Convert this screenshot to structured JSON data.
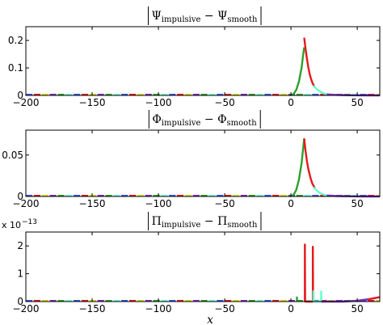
{
  "chart_data": [
    {
      "type": "line",
      "title": {
        "lhs": "Ψ",
        "lhs_sub": "impulsive",
        "rhs": "Ψ",
        "rhs_sub": "smooth"
      },
      "xlim": [
        -200,
        67
      ],
      "ylim": [
        0,
        0.25
      ],
      "x_ticks": [
        {
          "value": -200,
          "label": "−200"
        },
        {
          "value": -150,
          "label": "−150"
        },
        {
          "value": -100,
          "label": "−100"
        },
        {
          "value": -50,
          "label": "−50"
        },
        {
          "value": 0,
          "label": "0"
        },
        {
          "value": 50,
          "label": "50"
        }
      ],
      "y_ticks": [
        {
          "value": 0,
          "label": "0"
        },
        {
          "value": 0.1,
          "label": "0.1"
        },
        {
          "value": 0.2,
          "label": "0.2"
        }
      ],
      "exponent_label": "",
      "series": [
        {
          "color": "#2ca02c",
          "points": [
            [
              -1,
              0.0
            ],
            [
              2,
              0.005
            ],
            [
              4,
              0.02
            ],
            [
              6,
              0.05
            ],
            [
              8,
              0.1
            ],
            [
              9,
              0.14
            ],
            [
              10,
              0.175
            ]
          ]
        },
        {
          "color": "#e41a1c",
          "points": [
            [
              10,
              0.21
            ],
            [
              11,
              0.17
            ],
            [
              12,
              0.135
            ],
            [
              13,
              0.105
            ],
            [
              14,
              0.08
            ],
            [
              15,
              0.062
            ],
            [
              16,
              0.048
            ],
            [
              17,
              0.038
            ],
            [
              18,
              0.03
            ]
          ]
        },
        {
          "color": "#66ffcc",
          "points": [
            [
              17,
              0.035
            ],
            [
              19,
              0.025
            ],
            [
              21,
              0.017
            ],
            [
              23,
              0.011
            ],
            [
              25,
              0.007
            ],
            [
              27,
              0.004
            ]
          ]
        },
        {
          "color": "#7b2fbf",
          "points": [
            [
              27,
              0.004
            ],
            [
              33,
              0.002
            ],
            [
              40,
              0.001
            ],
            [
              50,
              0.0003
            ],
            [
              67,
              0.0
            ]
          ]
        }
      ]
    },
    {
      "type": "line",
      "title": {
        "lhs": "Φ",
        "lhs_sub": "impulsive",
        "rhs": "Φ",
        "rhs_sub": "smooth"
      },
      "xlim": [
        -200,
        67
      ],
      "ylim": [
        0,
        0.08
      ],
      "x_ticks": [
        {
          "value": -200,
          "label": "−200"
        },
        {
          "value": -150,
          "label": "−150"
        },
        {
          "value": -100,
          "label": "−100"
        },
        {
          "value": -50,
          "label": "−50"
        },
        {
          "value": 0,
          "label": "0"
        },
        {
          "value": 50,
          "label": "50"
        }
      ],
      "y_ticks": [
        {
          "value": 0,
          "label": "0"
        },
        {
          "value": 0.05,
          "label": "0.05"
        }
      ],
      "exponent_label": "",
      "series": [
        {
          "color": "#2ca02c",
          "points": [
            [
              -1,
              0.0
            ],
            [
              2,
              0.002
            ],
            [
              4,
              0.008
            ],
            [
              6,
              0.02
            ],
            [
              8,
              0.04
            ],
            [
              9,
              0.055
            ],
            [
              10,
              0.07
            ]
          ]
        },
        {
          "color": "#e41a1c",
          "points": [
            [
              10,
              0.07
            ],
            [
              11,
              0.055
            ],
            [
              12,
              0.043
            ],
            [
              13,
              0.034
            ],
            [
              14,
              0.027
            ],
            [
              15,
              0.021
            ],
            [
              16,
              0.016
            ],
            [
              17,
              0.013
            ],
            [
              18,
              0.01
            ]
          ]
        },
        {
          "color": "#66ffcc",
          "points": [
            [
              17,
              0.011
            ],
            [
              19,
              0.008
            ],
            [
              21,
              0.005
            ],
            [
              23,
              0.0035
            ],
            [
              25,
              0.002
            ],
            [
              27,
              0.0012
            ]
          ]
        },
        {
          "color": "#7b2fbf",
          "points": [
            [
              27,
              0.0012
            ],
            [
              33,
              0.0006
            ],
            [
              40,
              0.0003
            ],
            [
              50,
              0.0001
            ],
            [
              67,
              0.0
            ]
          ]
        }
      ]
    },
    {
      "type": "line",
      "title": {
        "lhs": "Π",
        "lhs_sub": "impulsive",
        "rhs": "Π",
        "rhs_sub": "smooth"
      },
      "xlim": [
        -200,
        67
      ],
      "ylim": [
        0,
        2.5
      ],
      "x_ticks": [
        {
          "value": -200,
          "label": "−200"
        },
        {
          "value": -150,
          "label": "−150"
        },
        {
          "value": -100,
          "label": "−100"
        },
        {
          "value": -50,
          "label": "−50"
        },
        {
          "value": 0,
          "label": "0"
        },
        {
          "value": 50,
          "label": "50"
        }
      ],
      "y_ticks": [
        {
          "value": 0,
          "label": "0"
        },
        {
          "value": 1,
          "label": "1"
        },
        {
          "value": 2,
          "label": "2"
        }
      ],
      "exponent_label": {
        "base": "x 10",
        "exp": "−13"
      },
      "xlabel": "x",
      "series": [
        {
          "color": "#2ca02c",
          "points": [
            [
              4.5,
              0.0
            ],
            [
              4.5,
              0.15
            ],
            [
              4.6,
              0.0
            ]
          ]
        },
        {
          "color": "#e41a1c",
          "points": [
            [
              10.5,
              0.0
            ],
            [
              10.5,
              2.05
            ],
            [
              10.7,
              0.0
            ],
            [
              16.5,
              0.0
            ],
            [
              16.5,
              1.97
            ],
            [
              16.7,
              0.0
            ]
          ]
        },
        {
          "color": "#66ffcc",
          "points": [
            [
              16.9,
              0.0
            ],
            [
              16.9,
              0.37
            ],
            [
              17.1,
              0.0
            ],
            [
              22.8,
              0.0
            ],
            [
              22.8,
              0.37
            ],
            [
              23.0,
              0.0
            ]
          ]
        },
        {
          "color": "#7b2fbf",
          "points": [
            [
              23,
              0.0
            ],
            [
              40,
              0.0
            ],
            [
              50,
              0.03
            ],
            [
              58,
              0.08
            ],
            [
              67,
              0.16
            ]
          ]
        },
        {
          "color": "#e41a1c",
          "points": [
            [
              58,
              0.08
            ],
            [
              63,
              0.12
            ],
            [
              67,
              0.16
            ]
          ]
        }
      ]
    }
  ]
}
